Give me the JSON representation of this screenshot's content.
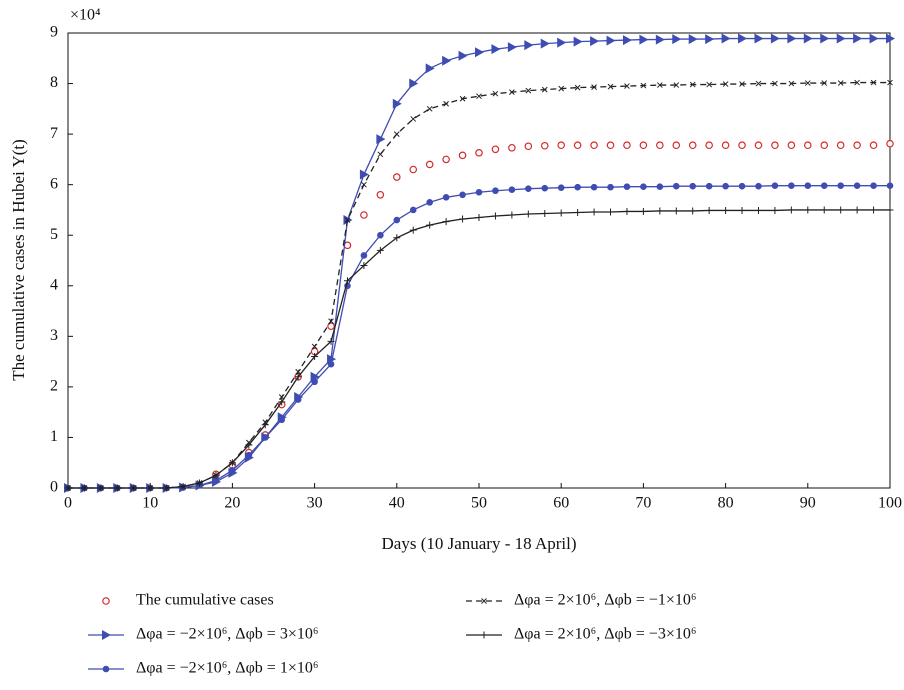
{
  "chart_data": {
    "type": "line",
    "x_label": "Days (10 January - 18 April)",
    "y_label": "The cumulative cases in Hubei Y(t)",
    "y_multiplier": "×10⁴",
    "xlim": [
      0,
      100
    ],
    "xticks": [
      0,
      10,
      20,
      30,
      40,
      50,
      60,
      70,
      80,
      90,
      100
    ],
    "ylim": [
      0,
      9
    ],
    "yticks": [
      0,
      1,
      2,
      3,
      4,
      5,
      6,
      7,
      8,
      9
    ],
    "x": [
      0,
      2,
      4,
      6,
      8,
      10,
      12,
      14,
      16,
      18,
      20,
      22,
      24,
      26,
      28,
      30,
      32,
      34,
      36,
      38,
      40,
      42,
      44,
      46,
      48,
      50,
      52,
      54,
      56,
      58,
      60,
      62,
      64,
      66,
      68,
      70,
      72,
      74,
      76,
      78,
      80,
      82,
      84,
      86,
      88,
      90,
      92,
      94,
      96,
      98,
      100
    ],
    "series": [
      {
        "name": "The cumulative cases",
        "color": "#d42a2a",
        "marker": "circle-open",
        "linestyle": "none",
        "values": [
          null,
          null,
          null,
          null,
          null,
          null,
          null,
          null,
          null,
          0.27,
          0.45,
          0.7,
          1.05,
          1.65,
          2.2,
          2.7,
          3.2,
          4.8,
          5.4,
          5.8,
          6.15,
          6.3,
          6.4,
          6.5,
          6.58,
          6.63,
          6.7,
          6.73,
          6.76,
          6.77,
          6.78,
          6.78,
          6.78,
          6.78,
          6.78,
          6.78,
          6.78,
          6.78,
          6.78,
          6.78,
          6.78,
          6.78,
          6.78,
          6.78,
          6.78,
          6.78,
          6.78,
          6.78,
          6.78,
          6.78,
          6.81
        ]
      },
      {
        "name": "Δφa = −2×10⁶, Δφb = 3×10⁶",
        "color": "#3f4db3",
        "marker": "triangle",
        "linestyle": "solid",
        "values": [
          0,
          0,
          0,
          0,
          0,
          0,
          0,
          0.01,
          0.05,
          0.12,
          0.3,
          0.6,
          1.0,
          1.4,
          1.8,
          2.2,
          2.55,
          5.3,
          6.2,
          6.9,
          7.6,
          8.0,
          8.3,
          8.45,
          8.55,
          8.62,
          8.68,
          8.72,
          8.76,
          8.79,
          8.81,
          8.83,
          8.84,
          8.85,
          8.86,
          8.87,
          8.87,
          8.88,
          8.88,
          8.88,
          8.89,
          8.89,
          8.89,
          8.89,
          8.89,
          8.89,
          8.89,
          8.89,
          8.89,
          8.89,
          8.89
        ]
      },
      {
        "name": "Δφa = −2×10⁶, Δφb = 1×10⁶",
        "color": "#3f4db3",
        "marker": "circle",
        "linestyle": "solid",
        "values": [
          0,
          0,
          0,
          0,
          0,
          0,
          0,
          0.01,
          0.05,
          0.15,
          0.35,
          0.65,
          1.0,
          1.35,
          1.75,
          2.1,
          2.45,
          4.0,
          4.6,
          5.0,
          5.3,
          5.5,
          5.65,
          5.75,
          5.8,
          5.85,
          5.88,
          5.9,
          5.92,
          5.93,
          5.94,
          5.95,
          5.95,
          5.95,
          5.96,
          5.96,
          5.96,
          5.97,
          5.97,
          5.97,
          5.97,
          5.97,
          5.97,
          5.98,
          5.98,
          5.98,
          5.98,
          5.98,
          5.98,
          5.98,
          5.98
        ]
      },
      {
        "name": "Δφa = 2×10⁶, Δφb = −1×10⁶",
        "color": "#222222",
        "marker": "x",
        "linestyle": "dashed",
        "values": [
          0,
          0,
          0,
          0,
          0,
          0,
          0,
          0.03,
          0.1,
          0.25,
          0.5,
          0.9,
          1.3,
          1.8,
          2.3,
          2.8,
          3.3,
          5.3,
          6.0,
          6.6,
          7.0,
          7.3,
          7.5,
          7.6,
          7.7,
          7.75,
          7.8,
          7.83,
          7.86,
          7.88,
          7.9,
          7.92,
          7.93,
          7.94,
          7.95,
          7.96,
          7.97,
          7.97,
          7.98,
          7.98,
          7.99,
          7.99,
          8.0,
          8.0,
          8.0,
          8.01,
          8.01,
          8.01,
          8.02,
          8.02,
          8.02
        ]
      },
      {
        "name": "Δφa = 2×10⁶, Δφb = −3×10⁶",
        "color": "#222222",
        "marker": "plus",
        "linestyle": "solid",
        "values": [
          0,
          0,
          0,
          0,
          0,
          0,
          0,
          0.03,
          0.1,
          0.25,
          0.5,
          0.85,
          1.25,
          1.7,
          2.2,
          2.6,
          2.9,
          4.1,
          4.4,
          4.7,
          4.95,
          5.1,
          5.2,
          5.27,
          5.32,
          5.35,
          5.38,
          5.4,
          5.42,
          5.43,
          5.44,
          5.45,
          5.46,
          5.46,
          5.47,
          5.47,
          5.48,
          5.48,
          5.48,
          5.49,
          5.49,
          5.49,
          5.49,
          5.49,
          5.5,
          5.5,
          5.5,
          5.5,
          5.5,
          5.5,
          5.5
        ]
      }
    ]
  }
}
